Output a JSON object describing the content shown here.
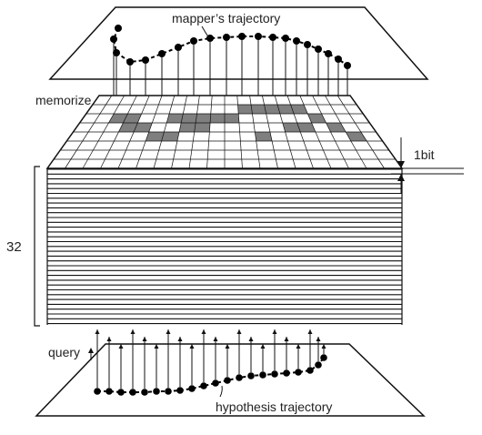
{
  "labels": {
    "mapper_trajectory": "mapper’s trajectory",
    "memorize": "memorize",
    "bit_depth": "1bit",
    "layer_count": "32",
    "query": "query",
    "hypothesis_trajectory": "hypothesis trajectory"
  },
  "colors": {
    "line": "#111111",
    "dot": "#000000",
    "grid_fill": "#ffffff",
    "memorized_cell": "#7f7f7f"
  }
}
